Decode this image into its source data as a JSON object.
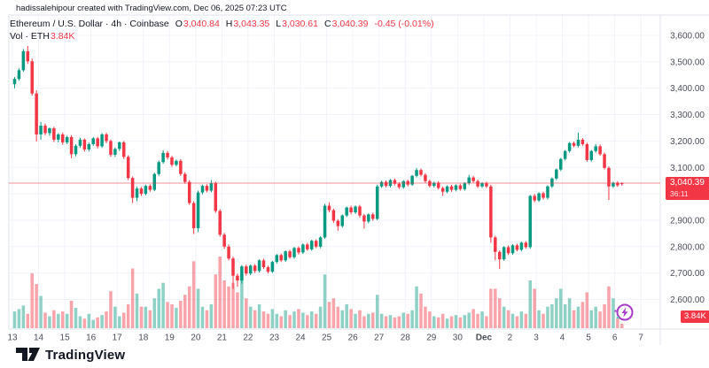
{
  "header": {
    "attribution": "hadissalehipour created with TradingView.com, Dec 06, 2025 07:23 UTC"
  },
  "legend": {
    "symbol_title": "Ethereum / U.S. Dollar · 4h · Coinbase",
    "open_label": "O",
    "open_value": "3,040.84",
    "high_label": "H",
    "high_value": "3,043.35",
    "low_label": "L",
    "low_value": "3,030.61",
    "close_label": "C",
    "close_value": "3,040.39",
    "change_value": "-0.45 (-0.01%)",
    "volume_label": "Vol · ETH",
    "volume_value": "3.84K"
  },
  "price_axis": {
    "current_price": "3,040.39",
    "countdown": "36:11",
    "volume_badge": "3.84K"
  },
  "logo": {
    "text": "TradingView"
  },
  "icons": {
    "bolt": "lightning-bolt"
  },
  "colors": {
    "up": "#089981",
    "down": "#F23645",
    "vol_up": "rgba(8,153,129,0.45)",
    "vol_down": "rgba(242,54,69,0.45)",
    "grid": "#f0f3fa",
    "border": "#e0e3eb",
    "axis_text": "#4a4e59",
    "price_line": "#F23645",
    "accent_purple": "#a73bc9"
  },
  "chart_data": {
    "type": "candlestick",
    "title": "Ethereum / U.S. Dollar, 4h, Coinbase",
    "interval": "4h",
    "candles_per_day": 6,
    "first_label": "Nov 13",
    "price_range": [
      2600,
      3600
    ],
    "current_price": 3040.39,
    "current_volume_k": 3.84,
    "volume_unit": "K ETH",
    "yticks": [
      3600,
      3500,
      3400,
      3300,
      3200,
      3100,
      3000,
      2900,
      2800,
      2700,
      2600
    ],
    "xticks": [
      "13",
      "14",
      "15",
      "16",
      "17",
      "18",
      "19",
      "20",
      "21",
      "22",
      "23",
      "24",
      "25",
      "26",
      "27",
      "28",
      "29",
      "30",
      "Dec",
      "2",
      "3",
      "4",
      "5",
      "6",
      "7"
    ],
    "ohlcv": [
      [
        3415,
        3442,
        3400,
        3435,
        14
      ],
      [
        3435,
        3475,
        3428,
        3468,
        16
      ],
      [
        3468,
        3548,
        3462,
        3540,
        19
      ],
      [
        3540,
        3560,
        3492,
        3502,
        12
      ],
      [
        3502,
        3512,
        3372,
        3380,
        46
      ],
      [
        3380,
        3392,
        3198,
        3225,
        37
      ],
      [
        3225,
        3272,
        3205,
        3258,
        27
      ],
      [
        3258,
        3266,
        3222,
        3230,
        13
      ],
      [
        3230,
        3252,
        3220,
        3248,
        10
      ],
      [
        3248,
        3254,
        3196,
        3205,
        15
      ],
      [
        3205,
        3230,
        3195,
        3225,
        12
      ],
      [
        3225,
        3232,
        3186,
        3195,
        14
      ],
      [
        3195,
        3220,
        3188,
        3215,
        12
      ],
      [
        3215,
        3222,
        3135,
        3150,
        23
      ],
      [
        3150,
        3188,
        3142,
        3182,
        17
      ],
      [
        3182,
        3212,
        3175,
        3205,
        10
      ],
      [
        3205,
        3210,
        3160,
        3168,
        8
      ],
      [
        3168,
        3194,
        3160,
        3188,
        12
      ],
      [
        3188,
        3215,
        3182,
        3210,
        7
      ],
      [
        3210,
        3216,
        3172,
        3180,
        9
      ],
      [
        3180,
        3230,
        3174,
        3225,
        11
      ],
      [
        3225,
        3231,
        3192,
        3200,
        14
      ],
      [
        3200,
        3206,
        3140,
        3148,
        31
      ],
      [
        3148,
        3176,
        3140,
        3170,
        18
      ],
      [
        3170,
        3198,
        3162,
        3195,
        10
      ],
      [
        3195,
        3200,
        3132,
        3140,
        13
      ],
      [
        3140,
        3146,
        3052,
        3060,
        20
      ],
      [
        3060,
        3066,
        2965,
        2985,
        50
      ],
      [
        2985,
        3028,
        2972,
        3020,
        29
      ],
      [
        3020,
        3026,
        2992,
        3000,
        18
      ],
      [
        3000,
        3035,
        2994,
        3030,
        18
      ],
      [
        3030,
        3036,
        3008,
        3015,
        15
      ],
      [
        3015,
        3080,
        3010,
        3075,
        25
      ],
      [
        3075,
        3126,
        3068,
        3120,
        33
      ],
      [
        3120,
        3165,
        3114,
        3155,
        38
      ],
      [
        3155,
        3162,
        3130,
        3138,
        22
      ],
      [
        3138,
        3144,
        3102,
        3110,
        20
      ],
      [
        3110,
        3130,
        3104,
        3125,
        17
      ],
      [
        3125,
        3131,
        3068,
        3075,
        23
      ],
      [
        3075,
        3082,
        3038,
        3045,
        28
      ],
      [
        3045,
        3052,
        2958,
        2965,
        35
      ],
      [
        2965,
        2972,
        2848,
        2870,
        56
      ],
      [
        2870,
        3012,
        2855,
        3005,
        33
      ],
      [
        3005,
        3035,
        2998,
        3030,
        18
      ],
      [
        3030,
        3036,
        3005,
        3012,
        15
      ],
      [
        3012,
        3052,
        3006,
        3040,
        20
      ],
      [
        3040,
        3046,
        2928,
        2935,
        45
      ],
      [
        2935,
        2942,
        2838,
        2845,
        60
      ],
      [
        2845,
        2852,
        2792,
        2800,
        40
      ],
      [
        2800,
        2808,
        2748,
        2755,
        35
      ],
      [
        2755,
        2762,
        2640,
        2690,
        38
      ],
      [
        2690,
        2698,
        2648,
        2672,
        30
      ],
      [
        2672,
        2730,
        2660,
        2725,
        45
      ],
      [
        2725,
        2732,
        2690,
        2698,
        25
      ],
      [
        2698,
        2732,
        2692,
        2728,
        18
      ],
      [
        2728,
        2734,
        2700,
        2708,
        15
      ],
      [
        2708,
        2752,
        2702,
        2748,
        20
      ],
      [
        2748,
        2754,
        2715,
        2722,
        14
      ],
      [
        2722,
        2728,
        2698,
        2705,
        12
      ],
      [
        2705,
        2746,
        2700,
        2742,
        16
      ],
      [
        2742,
        2772,
        2736,
        2768,
        12
      ],
      [
        2768,
        2774,
        2742,
        2748,
        10
      ],
      [
        2748,
        2786,
        2742,
        2782,
        15
      ],
      [
        2782,
        2788,
        2754,
        2760,
        11
      ],
      [
        2760,
        2799,
        2754,
        2795,
        14
      ],
      [
        2795,
        2801,
        2770,
        2778,
        16
      ],
      [
        2778,
        2812,
        2772,
        2808,
        13
      ],
      [
        2808,
        2814,
        2784,
        2790,
        11
      ],
      [
        2790,
        2826,
        2784,
        2822,
        14
      ],
      [
        2822,
        2828,
        2794,
        2800,
        12
      ],
      [
        2800,
        2839,
        2794,
        2835,
        18
      ],
      [
        2835,
        2962,
        2830,
        2955,
        45
      ],
      [
        2955,
        2968,
        2930,
        2938,
        22
      ],
      [
        2938,
        2944,
        2890,
        2898,
        25
      ],
      [
        2898,
        2904,
        2860,
        2878,
        18
      ],
      [
        2878,
        2922,
        2872,
        2918,
        15
      ],
      [
        2918,
        2952,
        2912,
        2948,
        20
      ],
      [
        2948,
        2955,
        2922,
        2930,
        16
      ],
      [
        2930,
        2956,
        2924,
        2952,
        12
      ],
      [
        2952,
        2958,
        2910,
        2918,
        15
      ],
      [
        2918,
        2924,
        2868,
        2895,
        10
      ],
      [
        2895,
        2926,
        2888,
        2922,
        12
      ],
      [
        2922,
        2928,
        2898,
        2905,
        13
      ],
      [
        2905,
        3034,
        2900,
        3028,
        28
      ],
      [
        3028,
        3050,
        3022,
        3045,
        12
      ],
      [
        3045,
        3051,
        3024,
        3030,
        10
      ],
      [
        3030,
        3056,
        3024,
        3052,
        11
      ],
      [
        3052,
        3058,
        3032,
        3038,
        9
      ],
      [
        3038,
        3044,
        3018,
        3025,
        10
      ],
      [
        3025,
        3052,
        3019,
        3048,
        13
      ],
      [
        3048,
        3054,
        3028,
        3035,
        12
      ],
      [
        3035,
        3072,
        3030,
        3068,
        15
      ],
      [
        3068,
        3098,
        3062,
        3090,
        35
      ],
      [
        3090,
        3096,
        3066,
        3072,
        29
      ],
      [
        3072,
        3078,
        3042,
        3048,
        18
      ],
      [
        3048,
        3054,
        3024,
        3030,
        14
      ],
      [
        3030,
        3046,
        3024,
        3042,
        10
      ],
      [
        3042,
        3048,
        3016,
        3022,
        9
      ],
      [
        3022,
        3028,
        2992,
        3008,
        12
      ],
      [
        3008,
        3032,
        3002,
        3028,
        8
      ],
      [
        3028,
        3034,
        3008,
        3015,
        10
      ],
      [
        3015,
        3036,
        3009,
        3032,
        11
      ],
      [
        3032,
        3038,
        3012,
        3018,
        9
      ],
      [
        3018,
        3044,
        3012,
        3040,
        11
      ],
      [
        3040,
        3072,
        3034,
        3062,
        13
      ],
      [
        3062,
        3068,
        3042,
        3048,
        16
      ],
      [
        3048,
        3054,
        3022,
        3028,
        12
      ],
      [
        3028,
        3044,
        3022,
        3040,
        14
      ],
      [
        3040,
        3046,
        3022,
        3028,
        10
      ],
      [
        3028,
        3034,
        2815,
        2835,
        33
      ],
      [
        2835,
        2841,
        2748,
        2780,
        33
      ],
      [
        2780,
        2786,
        2715,
        2752,
        25
      ],
      [
        2752,
        2802,
        2746,
        2798,
        18
      ],
      [
        2798,
        2804,
        2768,
        2775,
        15
      ],
      [
        2775,
        2809,
        2769,
        2805,
        12
      ],
      [
        2805,
        2811,
        2782,
        2788,
        10
      ],
      [
        2788,
        2819,
        2782,
        2815,
        14
      ],
      [
        2815,
        2821,
        2792,
        2798,
        12
      ],
      [
        2798,
        2996,
        2792,
        2992,
        40
      ],
      [
        2992,
        3000,
        2968,
        2975,
        33
      ],
      [
        2975,
        3006,
        2969,
        3002,
        15
      ],
      [
        3002,
        3008,
        2978,
        2985,
        12
      ],
      [
        2985,
        3032,
        2979,
        3028,
        18
      ],
      [
        3028,
        3062,
        3022,
        3058,
        20
      ],
      [
        3058,
        3096,
        3052,
        3092,
        25
      ],
      [
        3092,
        3136,
        3086,
        3132,
        33
      ],
      [
        3132,
        3166,
        3126,
        3162,
        20
      ],
      [
        3162,
        3196,
        3156,
        3192,
        25
      ],
      [
        3192,
        3198,
        3176,
        3182,
        15
      ],
      [
        3182,
        3232,
        3176,
        3205,
        18
      ],
      [
        3205,
        3211,
        3182,
        3188,
        22
      ],
      [
        3188,
        3194,
        3122,
        3128,
        30
      ],
      [
        3128,
        3166,
        3122,
        3162,
        15
      ],
      [
        3162,
        3188,
        3156,
        3180,
        18
      ],
      [
        3180,
        3186,
        3144,
        3150,
        14
      ],
      [
        3150,
        3156,
        3092,
        3098,
        20
      ],
      [
        3098,
        3104,
        2977,
        3028,
        35
      ],
      [
        3028,
        3046,
        3022,
        3042,
        25
      ],
      [
        3042,
        3048,
        3026,
        3032,
        8
      ],
      [
        3040.84,
        3043.35,
        3030.61,
        3040.39,
        3.84
      ]
    ]
  }
}
